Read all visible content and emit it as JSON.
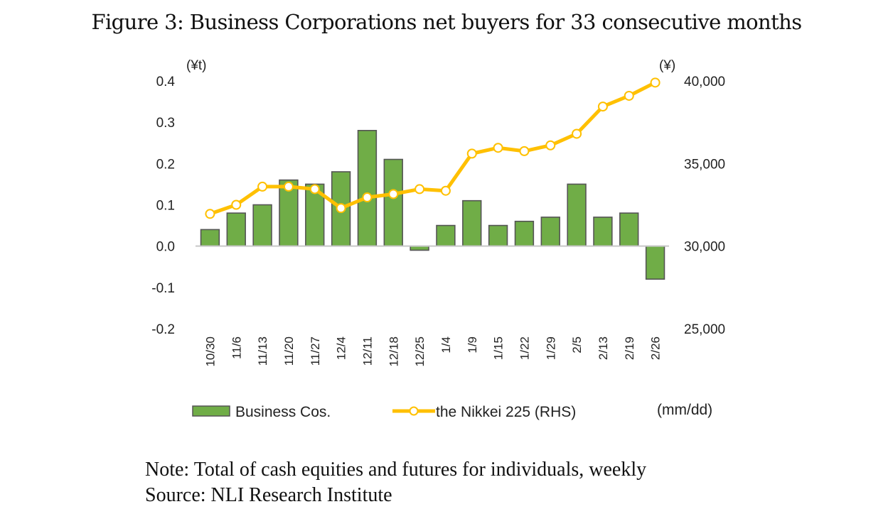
{
  "figure": {
    "title": "Figure 3: Business Corporations net buyers for 33 consecutive months",
    "note": "Note: Total of cash equities and futures for individuals, weekly",
    "source": "Source: NLI Research Institute"
  },
  "chart_data": {
    "type": "bar",
    "title": "Figure 3: Business Corporations net buyers for 33 consecutive months",
    "xlabel": "(mm/dd)",
    "ylabel": "(¥t)",
    "y2label": "(¥)",
    "categories": [
      "10/30",
      "11/6",
      "11/13",
      "11/20",
      "11/27",
      "12/4",
      "12/11",
      "12/18",
      "12/25",
      "1/4",
      "1/9",
      "1/15",
      "1/22",
      "1/29",
      "2/5",
      "2/13",
      "2/19",
      "2/26"
    ],
    "ylim": [
      -0.2,
      0.4
    ],
    "y_ticks": [
      "0.4",
      "0.3",
      "0.2",
      "0.1",
      "0.0",
      "-0.1",
      "-0.2"
    ],
    "y_tick_values": [
      0.4,
      0.3,
      0.2,
      0.1,
      0.0,
      -0.1,
      -0.2
    ],
    "y2lim": [
      25000,
      40000
    ],
    "y2_ticks": [
      "40,000",
      "35,000",
      "30,000",
      "25,000"
    ],
    "y2_tick_values": [
      40000,
      35000,
      30000,
      25000
    ],
    "grid": false,
    "legend_position": "bottom",
    "series": [
      {
        "name": "Business Cos.",
        "type": "bar",
        "axis": "left",
        "color": "#70AD47",
        "border_color": "#555555",
        "values": [
          0.04,
          0.08,
          0.1,
          0.16,
          0.15,
          0.18,
          0.28,
          0.21,
          -0.01,
          0.05,
          0.11,
          0.05,
          0.06,
          0.07,
          0.15,
          0.07,
          0.08,
          -0.08
        ]
      },
      {
        "name": "the Nikkei 225 (RHS)",
        "type": "line",
        "axis": "right",
        "color": "#FFC000",
        "marker": "circle-white",
        "values": [
          31950,
          32500,
          33600,
          33600,
          33450,
          32300,
          32950,
          33150,
          33450,
          33350,
          35600,
          35950,
          35750,
          36100,
          36800,
          38450,
          39100,
          39900
        ]
      }
    ]
  }
}
